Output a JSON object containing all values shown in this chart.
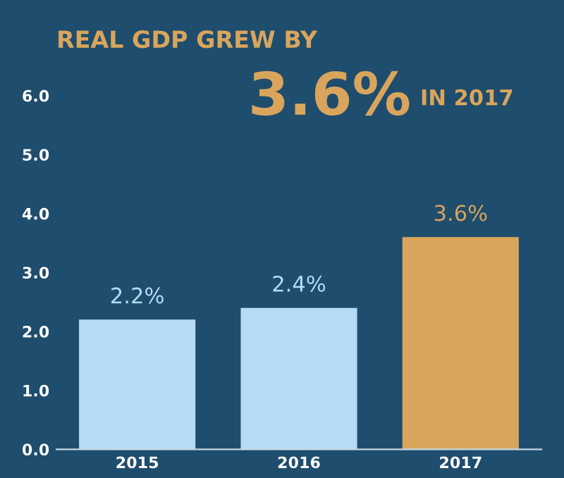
{
  "chart_data": {
    "type": "bar",
    "title": "REAL GDP GREW BY",
    "annotations": [
      "3.6%",
      "IN 2017"
    ],
    "categories": [
      "2015",
      "2016",
      "2017"
    ],
    "values": [
      2.2,
      2.4,
      3.6
    ],
    "colors": [
      "#b5dcf5",
      "#b5dcf5",
      "#d9a55c"
    ],
    "value_labels": [
      "2.2%",
      "2.4%",
      "3.6%"
    ],
    "ylim": [
      0,
      6
    ],
    "yticks": [
      {
        "value": 0,
        "label": "0.0"
      },
      {
        "value": 1,
        "label": "1.0"
      },
      {
        "value": 2,
        "label": "2.0"
      },
      {
        "value": 3,
        "label": "3.0"
      },
      {
        "value": 4,
        "label": "4.0"
      },
      {
        "value": 5,
        "label": "5.0"
      },
      {
        "value": 6,
        "label": "6.0"
      }
    ],
    "grid": false,
    "legend": false
  }
}
